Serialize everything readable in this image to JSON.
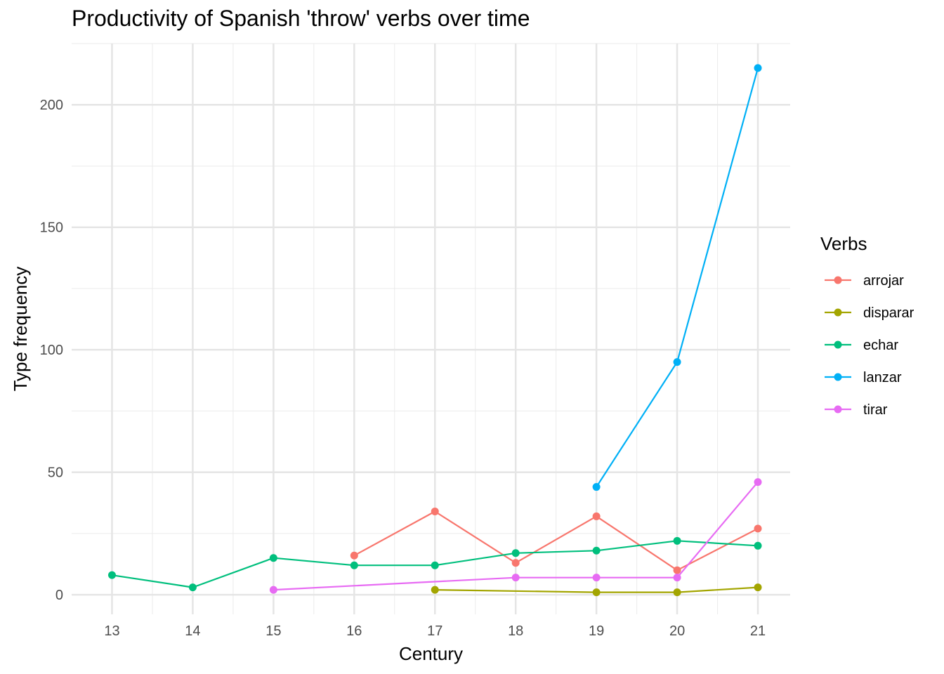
{
  "chart_data": {
    "type": "line",
    "title": "Productivity of Spanish 'throw' verbs over time",
    "xlabel": "Century",
    "ylabel": "Type frequency",
    "x_ticks": [
      13,
      14,
      15,
      16,
      17,
      18,
      19,
      20,
      21
    ],
    "y_ticks": [
      0,
      50,
      100,
      150,
      200
    ],
    "xlim": [
      12.5,
      21.4
    ],
    "ylim": [
      -8,
      225
    ],
    "grid": true,
    "legend": {
      "title": "Verbs",
      "position": "right"
    },
    "series": [
      {
        "name": "arrojar",
        "color": "#F8766D",
        "x": [
          16,
          17,
          18,
          19,
          20,
          21
        ],
        "y": [
          16,
          34,
          13,
          32,
          10,
          27
        ]
      },
      {
        "name": "disparar",
        "color": "#A3A500",
        "x": [
          17,
          19,
          20,
          21
        ],
        "y": [
          2,
          1,
          1,
          3
        ]
      },
      {
        "name": "echar",
        "color": "#00BF7D",
        "x": [
          13,
          14,
          15,
          16,
          17,
          18,
          19,
          20,
          21
        ],
        "y": [
          8,
          3,
          15,
          12,
          12,
          17,
          18,
          22,
          20
        ]
      },
      {
        "name": "lanzar",
        "color": "#00B0F6",
        "x": [
          19,
          20,
          21
        ],
        "y": [
          44,
          95,
          215
        ]
      },
      {
        "name": "tirar",
        "color": "#E76BF3",
        "x": [
          15,
          18,
          19,
          20,
          21
        ],
        "y": [
          2,
          7,
          7,
          7,
          46
        ]
      }
    ]
  }
}
